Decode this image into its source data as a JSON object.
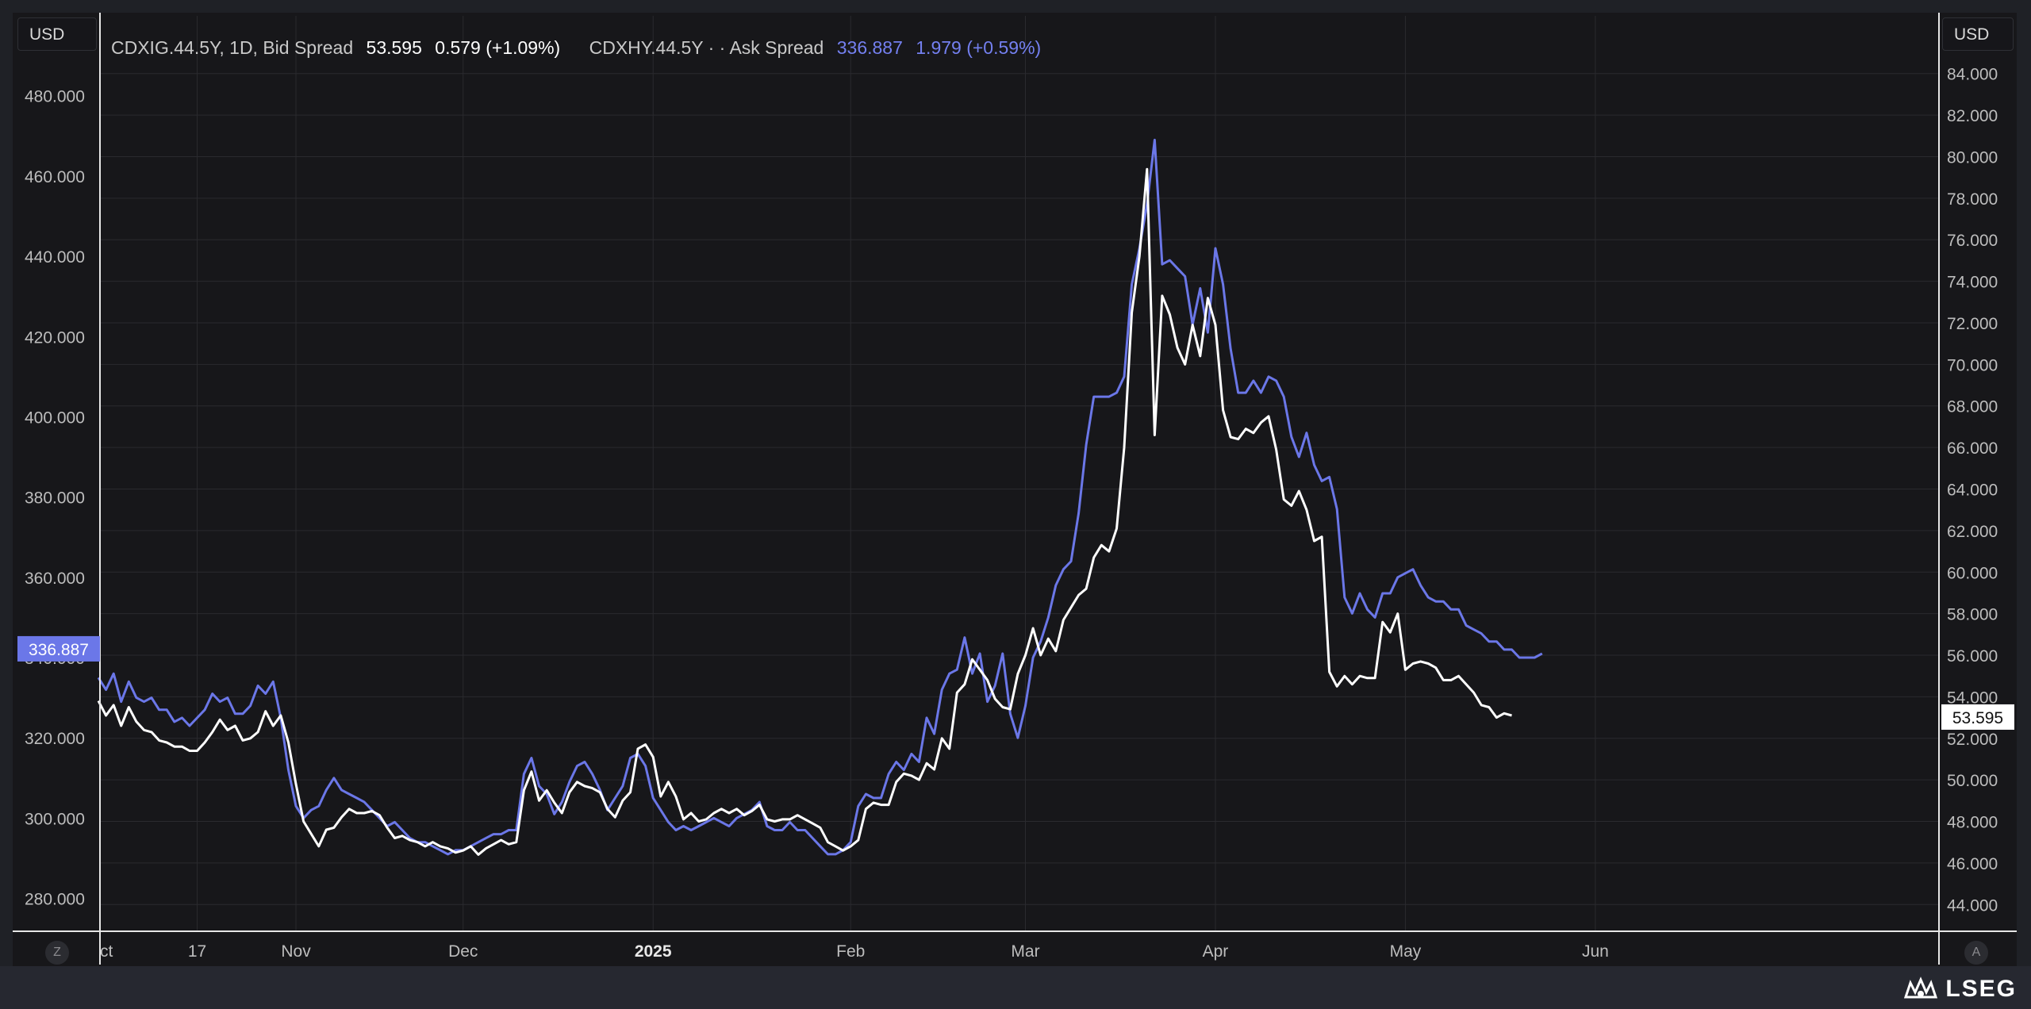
{
  "currency_left": "USD",
  "currency_right": "USD",
  "legend": {
    "s1_name": "CDXIG.44.5Y, 1D, Bid Spread",
    "s1_value": "53.595",
    "s1_change": "0.579 (+1.09%)",
    "s2_name": "CDXHY.44.5Y · · Ask Spread",
    "s2_value": "336.887",
    "s2_change": "1.979 (+0.59%)"
  },
  "buttons": {
    "left": "Z",
    "right": "A"
  },
  "logo": "LSEG",
  "chart_data": {
    "type": "line",
    "x_labels": [
      "ct",
      "17",
      "Nov",
      "Dec",
      "2025",
      "Feb",
      "Mar",
      "Apr",
      "May",
      "Jun"
    ],
    "x_label_positions": [
      0,
      13,
      26,
      48,
      73,
      99,
      122,
      147,
      172,
      197
    ],
    "x_range": [
      0,
      237
    ],
    "left_axis": {
      "ticks": [
        "280.000",
        "300.000",
        "320.000",
        "340.000",
        "360.000",
        "380.000",
        "400.000",
        "420.000",
        "440.000",
        "460.000",
        "480.000"
      ],
      "range": [
        272,
        492
      ]
    },
    "right_axis": {
      "ticks": [
        "44.000",
        "46.000",
        "48.000",
        "50.000",
        "52.000",
        "54.000",
        "56.000",
        "58.000",
        "60.000",
        "62.000",
        "64.000",
        "66.000",
        "68.000",
        "70.000",
        "72.000",
        "74.000",
        "76.000",
        "78.000",
        "80.000",
        "82.000",
        "84.000"
      ],
      "range": [
        42.75,
        85.25
      ]
    },
    "last_left_label": "336.887",
    "last_right_label": "53.595",
    "grid": true,
    "series": [
      {
        "name": "CDXHY.44.5Y Ask Spread",
        "axis": "left",
        "color": "#6b77e8",
        "values": [
          335,
          332,
          336,
          329,
          334,
          330,
          329,
          330,
          327,
          327,
          324,
          325,
          323,
          325,
          327,
          331,
          329,
          330,
          326,
          326,
          328,
          333,
          331,
          334,
          325,
          312,
          303,
          300,
          302,
          303,
          307,
          310,
          307,
          306,
          305,
          304,
          302,
          300,
          298,
          299,
          297,
          295,
          294,
          294,
          293,
          292,
          291,
          292,
          292,
          293,
          294,
          295,
          296,
          296,
          297,
          297,
          311,
          315,
          308,
          306,
          301,
          304,
          309,
          313,
          314,
          311,
          307,
          302,
          305,
          308,
          315,
          316,
          313,
          305,
          302,
          299,
          297,
          298,
          297,
          298,
          299,
          300,
          299,
          298,
          300,
          301,
          302,
          304,
          298,
          297,
          297,
          299,
          297,
          297,
          295,
          293,
          291,
          291,
          292,
          294,
          303,
          306,
          305,
          305,
          311,
          314,
          312,
          316,
          314,
          325,
          321,
          332,
          336,
          337,
          345,
          336,
          341,
          329,
          333,
          341,
          326,
          320,
          328,
          340,
          344,
          350,
          358,
          362,
          364,
          376,
          393,
          405,
          405,
          405,
          406,
          410,
          433,
          442,
          453,
          469,
          438,
          439,
          437,
          435,
          423,
          432,
          421,
          442,
          433,
          417,
          406,
          406,
          409,
          406,
          410,
          409,
          405,
          395,
          390,
          396,
          388,
          384,
          385,
          377,
          355,
          351,
          356,
          352,
          350,
          356,
          356,
          360,
          361,
          362,
          358,
          355,
          354,
          354,
          352,
          352,
          348,
          347,
          346,
          344,
          344,
          342,
          342,
          340,
          340,
          340,
          341
        ]
      },
      {
        "name": "CDXIG.44.5Y Bid Spread",
        "axis": "right",
        "color": "#ffffff",
        "values": [
          53.8,
          53.1,
          53.6,
          52.6,
          53.5,
          52.8,
          52.4,
          52.3,
          51.9,
          51.8,
          51.6,
          51.6,
          51.4,
          51.4,
          51.8,
          52.3,
          52.9,
          52.4,
          52.6,
          51.9,
          52.0,
          52.3,
          53.3,
          52.6,
          53.1,
          51.8,
          49.8,
          48.0,
          47.4,
          46.8,
          47.6,
          47.7,
          48.2,
          48.6,
          48.4,
          48.4,
          48.5,
          48.3,
          47.7,
          47.2,
          47.3,
          47.1,
          47.0,
          46.8,
          47.0,
          46.8,
          46.7,
          46.5,
          46.6,
          46.8,
          46.4,
          46.7,
          46.9,
          47.1,
          46.9,
          47.0,
          49.5,
          50.4,
          49.0,
          49.5,
          48.9,
          48.4,
          49.4,
          49.9,
          49.7,
          49.6,
          49.4,
          48.6,
          48.2,
          49.0,
          49.4,
          51.5,
          51.7,
          51.1,
          49.2,
          49.9,
          49.2,
          48.1,
          48.4,
          48.0,
          48.1,
          48.4,
          48.6,
          48.4,
          48.6,
          48.3,
          48.5,
          48.8,
          48.1,
          48.0,
          48.1,
          48.1,
          48.3,
          48.1,
          47.9,
          47.7,
          47.0,
          46.8,
          46.6,
          46.8,
          47.1,
          48.6,
          48.9,
          48.8,
          48.8,
          49.9,
          50.3,
          50.2,
          50.0,
          50.8,
          50.5,
          52.0,
          51.5,
          54.2,
          54.6,
          55.8,
          55.3,
          54.8,
          53.9,
          53.5,
          53.4,
          55.1,
          56.0,
          57.3,
          56.0,
          56.8,
          56.2,
          57.7,
          58.3,
          58.9,
          59.2,
          60.7,
          61.3,
          61.0,
          62.1,
          66.0,
          72.5,
          75.2,
          79.4,
          66.6,
          73.3,
          72.4,
          70.8,
          70.0,
          71.9,
          70.4,
          73.2,
          71.9,
          67.8,
          66.5,
          66.4,
          66.9,
          66.7,
          67.2,
          67.5,
          65.9,
          63.5,
          63.2,
          63.9,
          63.0,
          61.5,
          61.7,
          55.2,
          54.5,
          55.0,
          54.6,
          55.0,
          54.9,
          54.9,
          57.6,
          57.1,
          58.0,
          55.3,
          55.6,
          55.7,
          55.6,
          55.4,
          54.8,
          54.8,
          55.0,
          54.6,
          54.2,
          53.6,
          53.5,
          53.0,
          53.2,
          53.1
        ]
      }
    ]
  }
}
